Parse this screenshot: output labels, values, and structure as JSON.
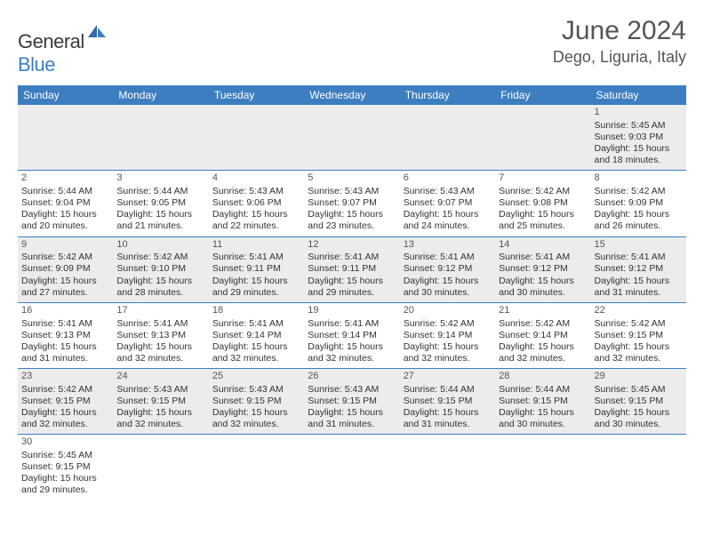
{
  "brand": {
    "part1": "General",
    "part2": "Blue"
  },
  "title": "June 2024",
  "location": "Dego, Liguria, Italy",
  "colors": {
    "header_bg": "#3d7ec1",
    "shade_bg": "#ececec",
    "text": "#333333",
    "title_color": "#555555"
  },
  "day_names": [
    "Sunday",
    "Monday",
    "Tuesday",
    "Wednesday",
    "Thursday",
    "Friday",
    "Saturday"
  ],
  "weeks": [
    {
      "shaded": true,
      "cells": [
        {
          "empty": true
        },
        {
          "empty": true
        },
        {
          "empty": true
        },
        {
          "empty": true
        },
        {
          "empty": true
        },
        {
          "empty": true
        },
        {
          "day": "1",
          "sunrise": "Sunrise: 5:45 AM",
          "sunset": "Sunset: 9:03 PM",
          "daylight1": "Daylight: 15 hours",
          "daylight2": "and 18 minutes."
        }
      ]
    },
    {
      "shaded": false,
      "cells": [
        {
          "day": "2",
          "sunrise": "Sunrise: 5:44 AM",
          "sunset": "Sunset: 9:04 PM",
          "daylight1": "Daylight: 15 hours",
          "daylight2": "and 20 minutes."
        },
        {
          "day": "3",
          "sunrise": "Sunrise: 5:44 AM",
          "sunset": "Sunset: 9:05 PM",
          "daylight1": "Daylight: 15 hours",
          "daylight2": "and 21 minutes."
        },
        {
          "day": "4",
          "sunrise": "Sunrise: 5:43 AM",
          "sunset": "Sunset: 9:06 PM",
          "daylight1": "Daylight: 15 hours",
          "daylight2": "and 22 minutes."
        },
        {
          "day": "5",
          "sunrise": "Sunrise: 5:43 AM",
          "sunset": "Sunset: 9:07 PM",
          "daylight1": "Daylight: 15 hours",
          "daylight2": "and 23 minutes."
        },
        {
          "day": "6",
          "sunrise": "Sunrise: 5:43 AM",
          "sunset": "Sunset: 9:07 PM",
          "daylight1": "Daylight: 15 hours",
          "daylight2": "and 24 minutes."
        },
        {
          "day": "7",
          "sunrise": "Sunrise: 5:42 AM",
          "sunset": "Sunset: 9:08 PM",
          "daylight1": "Daylight: 15 hours",
          "daylight2": "and 25 minutes."
        },
        {
          "day": "8",
          "sunrise": "Sunrise: 5:42 AM",
          "sunset": "Sunset: 9:09 PM",
          "daylight1": "Daylight: 15 hours",
          "daylight2": "and 26 minutes."
        }
      ]
    },
    {
      "shaded": true,
      "cells": [
        {
          "day": "9",
          "sunrise": "Sunrise: 5:42 AM",
          "sunset": "Sunset: 9:09 PM",
          "daylight1": "Daylight: 15 hours",
          "daylight2": "and 27 minutes."
        },
        {
          "day": "10",
          "sunrise": "Sunrise: 5:42 AM",
          "sunset": "Sunset: 9:10 PM",
          "daylight1": "Daylight: 15 hours",
          "daylight2": "and 28 minutes."
        },
        {
          "day": "11",
          "sunrise": "Sunrise: 5:41 AM",
          "sunset": "Sunset: 9:11 PM",
          "daylight1": "Daylight: 15 hours",
          "daylight2": "and 29 minutes."
        },
        {
          "day": "12",
          "sunrise": "Sunrise: 5:41 AM",
          "sunset": "Sunset: 9:11 PM",
          "daylight1": "Daylight: 15 hours",
          "daylight2": "and 29 minutes."
        },
        {
          "day": "13",
          "sunrise": "Sunrise: 5:41 AM",
          "sunset": "Sunset: 9:12 PM",
          "daylight1": "Daylight: 15 hours",
          "daylight2": "and 30 minutes."
        },
        {
          "day": "14",
          "sunrise": "Sunrise: 5:41 AM",
          "sunset": "Sunset: 9:12 PM",
          "daylight1": "Daylight: 15 hours",
          "daylight2": "and 30 minutes."
        },
        {
          "day": "15",
          "sunrise": "Sunrise: 5:41 AM",
          "sunset": "Sunset: 9:12 PM",
          "daylight1": "Daylight: 15 hours",
          "daylight2": "and 31 minutes."
        }
      ]
    },
    {
      "shaded": false,
      "cells": [
        {
          "day": "16",
          "sunrise": "Sunrise: 5:41 AM",
          "sunset": "Sunset: 9:13 PM",
          "daylight1": "Daylight: 15 hours",
          "daylight2": "and 31 minutes."
        },
        {
          "day": "17",
          "sunrise": "Sunrise: 5:41 AM",
          "sunset": "Sunset: 9:13 PM",
          "daylight1": "Daylight: 15 hours",
          "daylight2": "and 32 minutes."
        },
        {
          "day": "18",
          "sunrise": "Sunrise: 5:41 AM",
          "sunset": "Sunset: 9:14 PM",
          "daylight1": "Daylight: 15 hours",
          "daylight2": "and 32 minutes."
        },
        {
          "day": "19",
          "sunrise": "Sunrise: 5:41 AM",
          "sunset": "Sunset: 9:14 PM",
          "daylight1": "Daylight: 15 hours",
          "daylight2": "and 32 minutes."
        },
        {
          "day": "20",
          "sunrise": "Sunrise: 5:42 AM",
          "sunset": "Sunset: 9:14 PM",
          "daylight1": "Daylight: 15 hours",
          "daylight2": "and 32 minutes."
        },
        {
          "day": "21",
          "sunrise": "Sunrise: 5:42 AM",
          "sunset": "Sunset: 9:14 PM",
          "daylight1": "Daylight: 15 hours",
          "daylight2": "and 32 minutes."
        },
        {
          "day": "22",
          "sunrise": "Sunrise: 5:42 AM",
          "sunset": "Sunset: 9:15 PM",
          "daylight1": "Daylight: 15 hours",
          "daylight2": "and 32 minutes."
        }
      ]
    },
    {
      "shaded": true,
      "cells": [
        {
          "day": "23",
          "sunrise": "Sunrise: 5:42 AM",
          "sunset": "Sunset: 9:15 PM",
          "daylight1": "Daylight: 15 hours",
          "daylight2": "and 32 minutes."
        },
        {
          "day": "24",
          "sunrise": "Sunrise: 5:43 AM",
          "sunset": "Sunset: 9:15 PM",
          "daylight1": "Daylight: 15 hours",
          "daylight2": "and 32 minutes."
        },
        {
          "day": "25",
          "sunrise": "Sunrise: 5:43 AM",
          "sunset": "Sunset: 9:15 PM",
          "daylight1": "Daylight: 15 hours",
          "daylight2": "and 32 minutes."
        },
        {
          "day": "26",
          "sunrise": "Sunrise: 5:43 AM",
          "sunset": "Sunset: 9:15 PM",
          "daylight1": "Daylight: 15 hours",
          "daylight2": "and 31 minutes."
        },
        {
          "day": "27",
          "sunrise": "Sunrise: 5:44 AM",
          "sunset": "Sunset: 9:15 PM",
          "daylight1": "Daylight: 15 hours",
          "daylight2": "and 31 minutes."
        },
        {
          "day": "28",
          "sunrise": "Sunrise: 5:44 AM",
          "sunset": "Sunset: 9:15 PM",
          "daylight1": "Daylight: 15 hours",
          "daylight2": "and 30 minutes."
        },
        {
          "day": "29",
          "sunrise": "Sunrise: 5:45 AM",
          "sunset": "Sunset: 9:15 PM",
          "daylight1": "Daylight: 15 hours",
          "daylight2": "and 30 minutes."
        }
      ]
    },
    {
      "shaded": false,
      "last": true,
      "cells": [
        {
          "day": "30",
          "sunrise": "Sunrise: 5:45 AM",
          "sunset": "Sunset: 9:15 PM",
          "daylight1": "Daylight: 15 hours",
          "daylight2": "and 29 minutes."
        },
        {
          "empty": true
        },
        {
          "empty": true
        },
        {
          "empty": true
        },
        {
          "empty": true
        },
        {
          "empty": true
        },
        {
          "empty": true
        }
      ]
    }
  ]
}
